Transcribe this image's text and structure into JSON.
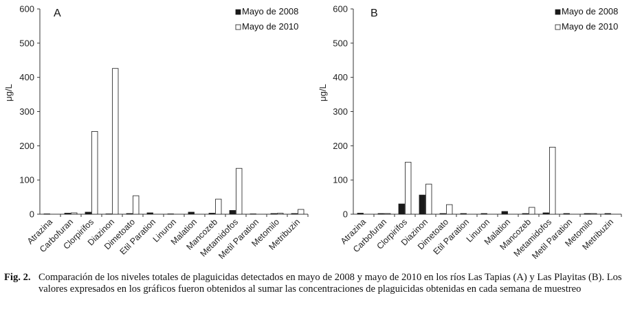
{
  "chart_data": [
    {
      "type": "bar",
      "panel_label": "A",
      "ylabel": "μg/L",
      "xlabel": "",
      "ylim": [
        0,
        600
      ],
      "yticks": [
        0,
        100,
        200,
        300,
        400,
        500,
        600
      ],
      "categories": [
        "Atrazina",
        "Carbofuran",
        "Clorpirifos",
        "Diazinon",
        "Dimetoato",
        "Etil Paration",
        "Linuron",
        "Malation",
        "Mancozeb",
        "Metamidofos",
        "Metil Paration",
        "Metomilo",
        "Metribuzin"
      ],
      "legend_position": "top-right",
      "series": [
        {
          "name": "Mayo de 2008",
          "color": "#1a1a1a",
          "values": [
            1,
            3,
            6,
            1,
            2,
            4,
            1,
            6,
            3,
            11,
            1,
            2,
            2
          ]
        },
        {
          "name": "Mayo de 2010",
          "color": "#ffffff",
          "values": [
            0,
            4,
            242,
            426,
            54,
            0,
            0,
            0,
            44,
            134,
            0,
            3,
            14
          ]
        }
      ]
    },
    {
      "type": "bar",
      "panel_label": "B",
      "ylabel": "μg/L",
      "xlabel": "",
      "ylim": [
        0,
        600
      ],
      "yticks": [
        0,
        100,
        200,
        300,
        400,
        500,
        600
      ],
      "categories": [
        "Atrazina",
        "Carbofuran",
        "Clorpirifos",
        "Diazinon",
        "Dimetoato",
        "Etil Paration",
        "Linuron",
        "Malation",
        "Mancozeb",
        "Metamidofos",
        "Metil Paration",
        "Metomilo",
        "Metribuzin"
      ],
      "legend_position": "top-right",
      "series": [
        {
          "name": "Mayo de 2008",
          "color": "#1a1a1a",
          "values": [
            3,
            2,
            30,
            56,
            2,
            2,
            2,
            8,
            2,
            4,
            2,
            2,
            2
          ]
        },
        {
          "name": "Mayo de 2010",
          "color": "#ffffff",
          "values": [
            0,
            2,
            152,
            88,
            28,
            0,
            0,
            0,
            20,
            196,
            0,
            2,
            0
          ]
        }
      ]
    }
  ],
  "caption": {
    "label": "Fig. 2.",
    "text": "Comparación de los niveles totales de plaguicidas detectados en mayo de 2008 y mayo de 2010 en los ríos Las Tapias (A) y Las Playitas (B). Los valores expresados en los gráficos fueron obtenidos al sumar las concentraciones de plaguicidas obtenidas en cada semana de muestreo"
  }
}
